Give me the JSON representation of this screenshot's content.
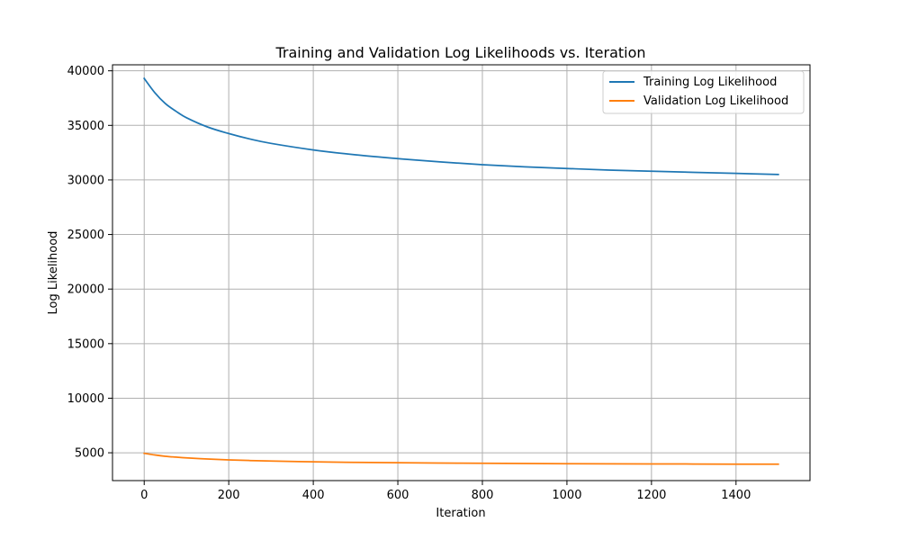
{
  "chart_data": {
    "type": "line",
    "title": "Training and Validation Log Likelihoods vs. Iteration",
    "xlabel": "Iteration",
    "ylabel": "Log Likelihood",
    "xlim": [
      -75,
      1575
    ],
    "ylim": [
      2450,
      40550
    ],
    "xticks": [
      0,
      200,
      400,
      600,
      800,
      1000,
      1200,
      1400
    ],
    "yticks": [
      5000,
      10000,
      15000,
      20000,
      25000,
      30000,
      35000,
      40000
    ],
    "grid": true,
    "legend_position": "top-right",
    "series": [
      {
        "name": "Training Log Likelihood",
        "color": "#1f77b4",
        "x": [
          0,
          25,
          50,
          75,
          100,
          150,
          200,
          250,
          300,
          400,
          500,
          600,
          700,
          800,
          900,
          1000,
          1100,
          1200,
          1300,
          1400,
          1500
        ],
        "y": [
          39300,
          38000,
          37000,
          36300,
          35700,
          34850,
          34250,
          33750,
          33350,
          32750,
          32300,
          31950,
          31650,
          31400,
          31200,
          31050,
          30900,
          30800,
          30700,
          30600,
          30500
        ]
      },
      {
        "name": "Validation Log Likelihood",
        "color": "#ff7f0e",
        "x": [
          0,
          25,
          50,
          75,
          100,
          150,
          200,
          250,
          300,
          400,
          500,
          600,
          700,
          800,
          900,
          1000,
          1100,
          1200,
          1300,
          1400,
          1500
        ],
        "y": [
          4950,
          4800,
          4680,
          4600,
          4530,
          4430,
          4350,
          4290,
          4240,
          4170,
          4120,
          4090,
          4060,
          4040,
          4020,
          4000,
          3990,
          3980,
          3970,
          3960,
          3950
        ]
      }
    ]
  }
}
